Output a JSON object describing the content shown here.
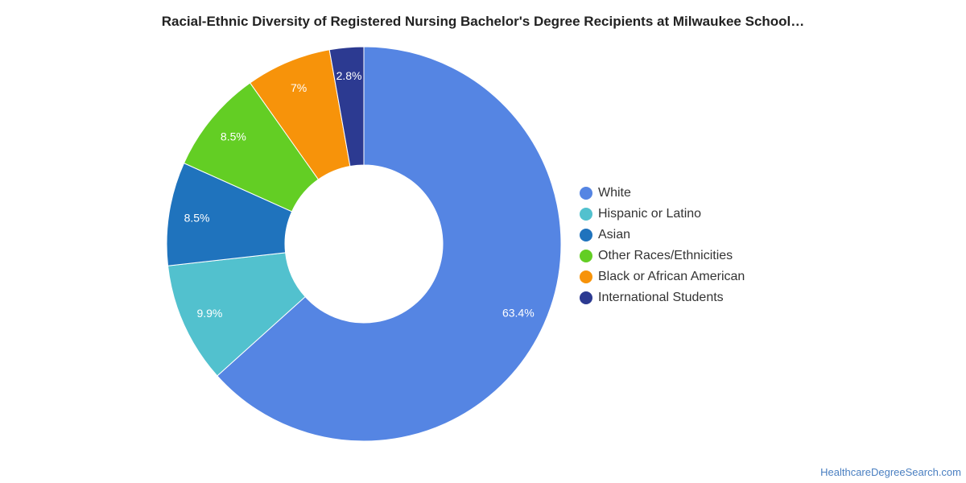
{
  "page": {
    "title": "Racial-Ethnic Diversity of Registered Nursing Bachelor's Degree Recipients at Milwaukee School…",
    "watermark": "HealthcareDegreeSearch.com"
  },
  "chart_data": {
    "type": "pie",
    "donut": true,
    "title": "Racial-Ethnic Diversity of Registered Nursing Bachelor's Degree Recipients at Milwaukee School…",
    "legend_position": "right",
    "start_angle_deg": 0,
    "direction": "clockwise",
    "slices": [
      {
        "name": "White",
        "value": 63.4,
        "label": "63.4%",
        "color": "#5585e3"
      },
      {
        "name": "Hispanic or Latino",
        "value": 9.9,
        "label": "9.9%",
        "color": "#52c1ce"
      },
      {
        "name": "Asian",
        "value": 8.5,
        "label": "8.5%",
        "color": "#1f73bd"
      },
      {
        "name": "Other Races/Ethnicities",
        "value": 8.5,
        "label": "8.5%",
        "color": "#63ce24"
      },
      {
        "name": "Black or African American",
        "value": 7,
        "label": "7%",
        "color": "#f7930a"
      },
      {
        "name": "International Students",
        "value": 2.8,
        "label": "2.8%",
        "color": "#2c3a91"
      }
    ]
  }
}
